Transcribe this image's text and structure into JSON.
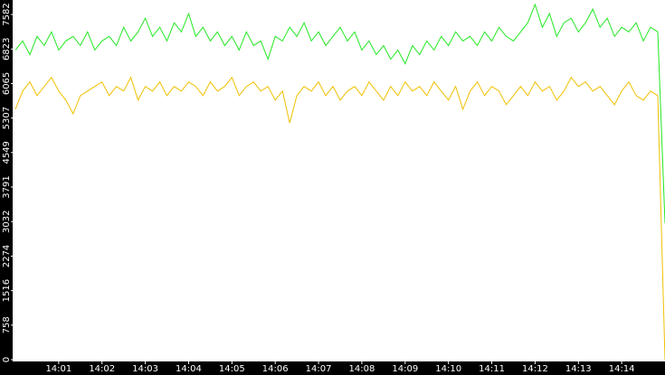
{
  "chart_data": {
    "type": "line",
    "categories": [
      null,
      null,
      null,
      null,
      null,
      null,
      "14:01",
      null,
      null,
      null,
      null,
      null,
      "14:02",
      null,
      null,
      null,
      null,
      null,
      "14:03",
      null,
      null,
      null,
      null,
      null,
      "14:04",
      null,
      null,
      null,
      null,
      null,
      "14:05",
      null,
      null,
      null,
      null,
      null,
      "14:06",
      null,
      null,
      null,
      null,
      null,
      "14:07",
      null,
      null,
      null,
      null,
      null,
      "14:08",
      null,
      null,
      null,
      null,
      null,
      "14:09",
      null,
      null,
      null,
      null,
      null,
      "14:10",
      null,
      null,
      null,
      null,
      null,
      "14:11",
      null,
      null,
      null,
      null,
      null,
      "14:12",
      null,
      null,
      null,
      null,
      null,
      "14:13",
      null,
      null,
      null,
      null,
      null,
      "14:14",
      null,
      null,
      null,
      null,
      null,
      null
    ],
    "series": [
      {
        "color": "#22e822",
        "values": [
          6800,
          7000,
          6700,
          7100,
          6900,
          7200,
          6800,
          7000,
          7100,
          6900,
          7200,
          6800,
          7000,
          7100,
          6900,
          7300,
          7000,
          7200,
          7500,
          7100,
          7300,
          7000,
          7400,
          7200,
          7600,
          7100,
          7300,
          7000,
          7200,
          6900,
          7100,
          6800,
          7200,
          6900,
          7000,
          6600,
          7100,
          7000,
          7300,
          7100,
          7400,
          7000,
          7200,
          6900,
          7100,
          7300,
          7000,
          7200,
          6800,
          7000,
          6700,
          6900,
          6600,
          6800,
          6500,
          6900,
          6700,
          7000,
          6800,
          7100,
          6900,
          7200,
          7000,
          7100,
          6900,
          7200,
          7000,
          7300,
          7100,
          7000,
          7200,
          7400,
          7800,
          7300,
          7600,
          7100,
          7400,
          7500,
          7200,
          7400,
          7700,
          7300,
          7500,
          7100,
          7300,
          7200,
          7400,
          7000,
          7300,
          7200,
          3000
        ]
      },
      {
        "color": "#f0c000",
        "values": [
          5500,
          5900,
          6100,
          5800,
          6000,
          6200,
          5900,
          5700,
          5400,
          5800,
          5900,
          6000,
          6100,
          5800,
          6000,
          5900,
          6200,
          5700,
          6000,
          5900,
          6100,
          5800,
          6000,
          5900,
          6100,
          6000,
          5800,
          6100,
          5900,
          6000,
          6200,
          5800,
          6000,
          6100,
          5900,
          6000,
          5700,
          5900,
          5200,
          5800,
          6000,
          5900,
          6100,
          5800,
          6000,
          5700,
          5900,
          6000,
          5800,
          6100,
          5900,
          5700,
          6000,
          5800,
          6100,
          5900,
          6000,
          5800,
          6100,
          5900,
          5700,
          6000,
          5500,
          5900,
          6100,
          5800,
          6000,
          5900,
          5600,
          5800,
          6000,
          5800,
          6100,
          5900,
          6000,
          5700,
          5900,
          6200,
          6000,
          6100,
          5900,
          6000,
          5800,
          5600,
          5900,
          6100,
          5800,
          5700,
          5900,
          5800,
          0
        ]
      }
    ],
    "ylim": [
      0,
      7900
    ],
    "yticks": [
      0,
      758,
      1516,
      2274,
      3032,
      3791,
      4549,
      5307,
      6065,
      6823,
      7582
    ]
  }
}
